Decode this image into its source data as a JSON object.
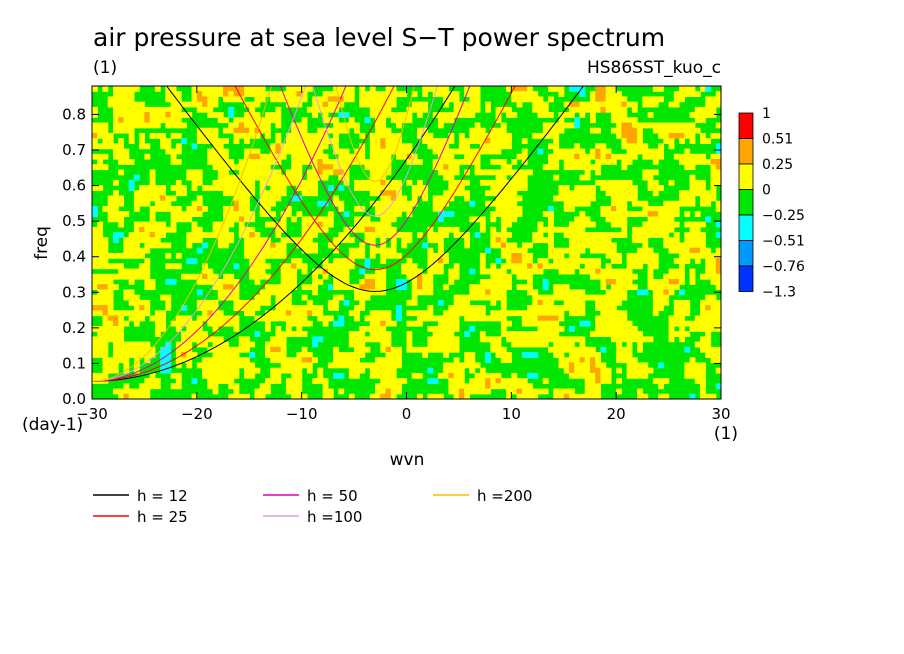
{
  "chart_data": {
    "type": "heatmap",
    "title": "air pressure at sea level S−T power spectrum",
    "subtitle_left": "(1)",
    "subtitle_right": "HS86SST_kuo_c",
    "xlabel": "wvn",
    "ylabel": "freq",
    "x_unit": "(1)",
    "y_unit": "(day-1)",
    "xlim": [
      -30,
      30
    ],
    "ylim": [
      0,
      0.88
    ],
    "x_ticks": [
      -30,
      -20,
      -10,
      0,
      10,
      20,
      30
    ],
    "x_tick_labels": [
      "−30",
      "−20",
      "−10",
      "0",
      "10",
      "20",
      "30"
    ],
    "y_ticks": [
      0,
      0.1,
      0.2,
      0.3,
      0.4,
      0.5,
      0.6,
      0.7,
      0.8
    ],
    "y_tick_labels": [
      "0.0",
      "0.1",
      "0.2",
      "0.3",
      "0.4",
      "0.5",
      "0.6",
      "0.7",
      "0.8"
    ],
    "colorbar": {
      "labels": [
        "1",
        "0.51",
        "0.25",
        "0",
        "−0.25",
        "−0.51",
        "−0.76",
        "−1.3"
      ],
      "colors": [
        "#ff0000",
        "#ffa500",
        "#ffff00",
        "#00e600",
        "#00ffff",
        "#0099ff",
        "#0033ff"
      ]
    },
    "field_description": "noisy field mostly between -0.25 and 0.25 (yellow/green) with sparse orange and cyan patches",
    "dispersion_curves": [
      {
        "label": "h = 12",
        "h": 12,
        "color": "#000000"
      },
      {
        "label": "h = 25",
        "h": 25,
        "color": "#ff0000"
      },
      {
        "label": "h = 50",
        "h": 50,
        "color": "#e000b0"
      },
      {
        "label": "h =100",
        "h": 100,
        "color": "#e0a0e0"
      },
      {
        "label": "h =200",
        "h": 200,
        "color": "#f0c000"
      }
    ]
  }
}
